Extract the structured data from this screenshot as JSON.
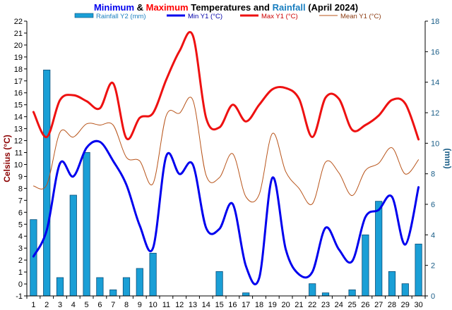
{
  "title": {
    "min_word": "Minimum",
    "amp": "&",
    "max_word": "Maximum",
    "mid": "Temperatures and",
    "rain_word": "Rainfall",
    "period": "(April 2024)"
  },
  "colors": {
    "min": "#0000ee",
    "max": "#ee1111",
    "mean": "#b8541a",
    "rain_fill": "#1a9fd6",
    "rain_edge": "#0a4f7a",
    "ylabel_left": "#8b0000",
    "ylabel_right": "#1a5d87"
  },
  "chart_data": {
    "type": "bar+line",
    "title": "Minimum & Maximum Temperatures and Rainfall (April 2024)",
    "xlabel": "",
    "ylabel": "Celsius (°C)",
    "y2label": "(mm)",
    "ylim": [
      -1,
      22
    ],
    "y2lim": [
      0,
      18
    ],
    "legend_position": "top",
    "grid": false,
    "categories": [
      "1",
      "2",
      "3",
      "4",
      "5",
      "6",
      "7",
      "8",
      "9",
      "10",
      "11",
      "12",
      "13",
      "14",
      "15",
      "16",
      "17",
      "18",
      "19",
      "20",
      "21",
      "22",
      "23",
      "24",
      "25",
      "26",
      "27",
      "28",
      "29",
      "30"
    ],
    "series": [
      {
        "name": "Rainfall Y2 (mm)",
        "kind": "bar",
        "axis": "y2",
        "values": [
          5.0,
          14.8,
          1.2,
          6.6,
          9.4,
          1.2,
          0.4,
          1.2,
          1.8,
          2.8,
          0,
          0,
          0,
          0,
          1.6,
          0,
          0.2,
          0,
          0,
          0,
          0,
          0.8,
          0.2,
          0,
          0.4,
          4.0,
          6.2,
          1.6,
          0.8,
          3.4
        ]
      },
      {
        "name": "Min Y1 (°C)",
        "kind": "line",
        "axis": "y1",
        "values": [
          2.3,
          4.5,
          10.1,
          9.0,
          11.4,
          11.9,
          10.3,
          8.3,
          4.9,
          3.0,
          10.7,
          9.2,
          10.0,
          4.7,
          4.6,
          6.7,
          1.5,
          0.5,
          8.9,
          2.9,
          0.8,
          1.0,
          4.7,
          2.9,
          1.9,
          5.6,
          6.2,
          7.3,
          3.3,
          8.1
        ]
      },
      {
        "name": "Max Y1 (°C)",
        "kind": "line",
        "axis": "y1",
        "values": [
          14.4,
          12.3,
          15.4,
          15.8,
          15.3,
          14.7,
          16.8,
          12.2,
          13.9,
          14.3,
          17.1,
          19.5,
          20.8,
          13.9,
          13.1,
          15.0,
          13.6,
          15.0,
          16.3,
          16.4,
          15.5,
          12.3,
          15.6,
          15.5,
          12.9,
          13.3,
          14.1,
          15.4,
          15.1,
          12.1
        ]
      },
      {
        "name": "Mean Y1 (°C)",
        "kind": "line",
        "axis": "y1",
        "values": [
          8.2,
          8.3,
          12.7,
          12.3,
          13.4,
          13.3,
          13.3,
          10.6,
          10.3,
          8.4,
          14.1,
          14.3,
          15.4,
          9.1,
          8.9,
          10.9,
          7.3,
          7.5,
          12.6,
          9.4,
          8.0,
          6.7,
          10.2,
          9.3,
          7.4,
          9.5,
          10.1,
          11.4,
          9.2,
          10.4
        ]
      }
    ]
  }
}
